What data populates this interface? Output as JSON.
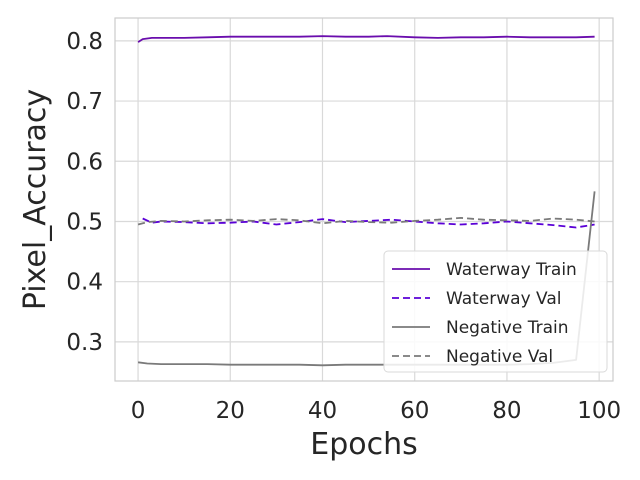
{
  "chart_data": {
    "type": "line",
    "xlabel": "Epochs",
    "ylabel": "Pixel_Accuracy",
    "xlim": [
      -5,
      103
    ],
    "ylim": [
      0.235,
      0.838
    ],
    "xticks": [
      0,
      20,
      40,
      60,
      80,
      100
    ],
    "yticks": [
      0.3,
      0.4,
      0.5,
      0.6,
      0.7,
      0.8
    ],
    "xtick_labels": [
      "0",
      "20",
      "40",
      "60",
      "80",
      "100"
    ],
    "ytick_labels": [
      "0.3",
      "0.4",
      "0.5",
      "0.6",
      "0.7",
      "0.8"
    ],
    "grid": true,
    "legend_position": "lower-right",
    "series": [
      {
        "name": "Waterway Train",
        "color": "#6a0dad",
        "dash": "solid",
        "x": [
          0,
          1,
          3,
          5,
          10,
          15,
          20,
          25,
          30,
          35,
          40,
          45,
          50,
          54,
          60,
          65,
          70,
          75,
          80,
          85,
          90,
          95,
          99
        ],
        "y": [
          0.798,
          0.803,
          0.805,
          0.805,
          0.805,
          0.806,
          0.807,
          0.807,
          0.807,
          0.807,
          0.808,
          0.807,
          0.807,
          0.808,
          0.806,
          0.805,
          0.806,
          0.806,
          0.807,
          0.806,
          0.806,
          0.806,
          0.807
        ]
      },
      {
        "name": "Waterway Val",
        "color": "#5a00d6",
        "dash": "dashed",
        "x": [
          1,
          3,
          5,
          10,
          15,
          20,
          25,
          30,
          35,
          40,
          45,
          50,
          55,
          60,
          65,
          70,
          75,
          80,
          85,
          90,
          95,
          99
        ],
        "y": [
          0.505,
          0.498,
          0.5,
          0.499,
          0.497,
          0.498,
          0.5,
          0.495,
          0.499,
          0.504,
          0.499,
          0.501,
          0.503,
          0.5,
          0.497,
          0.495,
          0.497,
          0.5,
          0.497,
          0.494,
          0.49,
          0.495
        ]
      },
      {
        "name": "Negative Train",
        "color": "#7a7a7a",
        "dash": "solid",
        "x": [
          0,
          2,
          5,
          10,
          15,
          20,
          25,
          30,
          35,
          40,
          45,
          50,
          55,
          60,
          65,
          70,
          75,
          80,
          85,
          90,
          95,
          99
        ],
        "y": [
          0.266,
          0.264,
          0.263,
          0.263,
          0.263,
          0.262,
          0.262,
          0.262,
          0.262,
          0.261,
          0.262,
          0.262,
          0.262,
          0.262,
          0.262,
          0.262,
          0.262,
          0.262,
          0.263,
          0.265,
          0.27,
          0.55
        ]
      },
      {
        "name": "Negative Val",
        "color": "#7a7a7a",
        "dash": "dashed",
        "x": [
          0,
          2,
          5,
          10,
          15,
          20,
          25,
          30,
          35,
          40,
          45,
          50,
          55,
          60,
          65,
          70,
          75,
          80,
          85,
          90,
          95,
          99
        ],
        "y": [
          0.495,
          0.499,
          0.501,
          0.5,
          0.502,
          0.503,
          0.501,
          0.504,
          0.502,
          0.497,
          0.501,
          0.499,
          0.498,
          0.501,
          0.503,
          0.506,
          0.503,
          0.502,
          0.501,
          0.505,
          0.503,
          0.5
        ]
      }
    ]
  }
}
